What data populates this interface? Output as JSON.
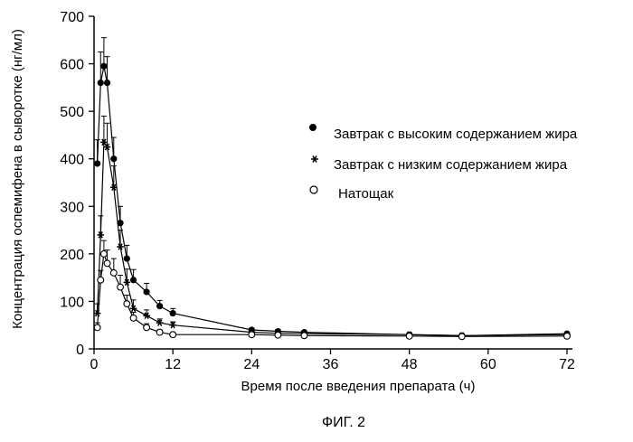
{
  "figure": {
    "caption": "ФИГ. 2"
  },
  "chart_data": {
    "type": "line",
    "title": "",
    "xlabel": "Время после введения препарата (ч)",
    "ylabel": "Концентрация оспемифена в сыворотке (нг/мл)",
    "xlim": [
      0,
      72
    ],
    "ylim": [
      0,
      700
    ],
    "xticks": [
      0,
      12,
      24,
      36,
      48,
      60,
      72
    ],
    "yticks": [
      0,
      100,
      200,
      300,
      400,
      500,
      600,
      700
    ],
    "xtick_labels": [
      "0",
      "12",
      "24",
      "36",
      "48",
      "60",
      "72"
    ],
    "ytick_labels": [
      "0",
      "100",
      "200",
      "300",
      "400",
      "500",
      "600",
      "700"
    ],
    "legend_position": "center-right",
    "grid": false,
    "series": [
      {
        "name": "Завтрак с высоким содержанием жира",
        "marker": "filled-circle",
        "x": [
          0.5,
          1,
          1.5,
          2,
          3,
          4,
          5,
          6,
          8,
          10,
          12,
          24,
          28,
          32,
          48,
          56,
          72
        ],
        "y": [
          390,
          560,
          595,
          560,
          400,
          265,
          190,
          145,
          120,
          90,
          75,
          40,
          37,
          35,
          30,
          28,
          32
        ],
        "err": [
          50,
          65,
          60,
          55,
          45,
          35,
          28,
          22,
          18,
          12,
          10,
          4,
          4,
          4,
          3,
          3,
          3
        ]
      },
      {
        "name": "Завтрак с низким содержанием жира",
        "marker": "asterisk",
        "x": [
          0.5,
          1,
          1.5,
          2,
          3,
          4,
          5,
          6,
          8,
          10,
          12,
          24,
          28,
          32,
          48,
          56,
          72
        ],
        "y": [
          75,
          240,
          435,
          425,
          340,
          215,
          140,
          85,
          70,
          55,
          50,
          35,
          33,
          32,
          30,
          28,
          30
        ],
        "err": [
          20,
          40,
          55,
          50,
          45,
          35,
          28,
          18,
          12,
          8,
          7,
          4,
          4,
          4,
          3,
          3,
          3
        ]
      },
      {
        "name": "Натощак",
        "marker": "open-circle",
        "x": [
          0.5,
          1,
          1.5,
          2,
          3,
          4,
          5,
          6,
          8,
          10,
          12,
          24,
          28,
          32,
          48,
          56,
          72
        ],
        "y": [
          45,
          145,
          200,
          180,
          160,
          130,
          95,
          65,
          45,
          35,
          30,
          30,
          29,
          28,
          27,
          26,
          27
        ],
        "err": [
          10,
          20,
          28,
          28,
          30,
          25,
          18,
          12,
          8,
          5,
          4,
          3,
          3,
          3,
          3,
          3,
          3
        ]
      }
    ]
  }
}
